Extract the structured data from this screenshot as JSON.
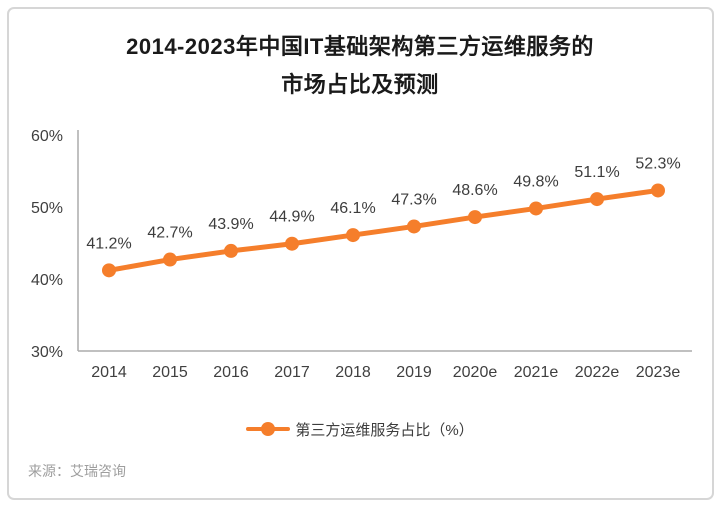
{
  "title": {
    "line1": "2014-2023年中国IT基础架构第三方运维服务的",
    "line2": "市场占比及预测"
  },
  "legend": {
    "label": "第三方运维服务占比（%）"
  },
  "source": {
    "text": "来源：艾瑞咨询"
  },
  "colors": {
    "line": "#F57E2B",
    "axis": "#ABABAB",
    "tick_label": "#404040",
    "data_label": "#3D3D3D",
    "title": "#1A1A1A",
    "source": "#9E9E9E",
    "card_border": "#D6D6D6"
  },
  "chart_data": {
    "type": "line",
    "title": "2014-2023年中国IT基础架构第三方运维服务的市场占比及预测",
    "categories": [
      "2014",
      "2015",
      "2016",
      "2017",
      "2018",
      "2019",
      "2020e",
      "2021e",
      "2022e",
      "2023e"
    ],
    "series": [
      {
        "name": "第三方运维服务占比（%）",
        "values": [
          41.2,
          42.7,
          43.9,
          44.9,
          46.1,
          47.3,
          48.6,
          49.8,
          51.1,
          52.3
        ]
      }
    ],
    "yticks": [
      60,
      50,
      40,
      30
    ],
    "ytick_suffix": "%",
    "ylim": [
      30,
      60
    ],
    "xlabel": "",
    "ylabel": "",
    "grid": false,
    "legend_position": "bottom",
    "data_labels": true,
    "source": "来源：艾瑞咨询"
  }
}
